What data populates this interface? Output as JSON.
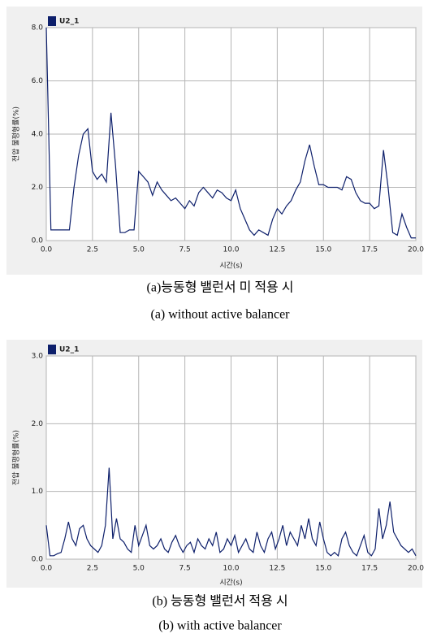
{
  "chart_data": [
    {
      "type": "line",
      "caption": "(a)능동형 밸런서 미 적용 시",
      "subcaption": "(a)  without active balancer",
      "x_label": "시간(s)",
      "y_label": "전압 불평형률(%)",
      "xlim": [
        0,
        20
      ],
      "ylim": [
        0,
        8
      ],
      "xticks": [
        {
          "value": 0,
          "label": "0.0"
        },
        2.5,
        {
          "value": 5,
          "label": "5.0"
        },
        7.5,
        {
          "value": 10,
          "label": "10.0"
        },
        12.5,
        {
          "value": 15,
          "label": "15.0"
        },
        17.5,
        {
          "value": 20,
          "label": "20.0"
        }
      ],
      "yticks": [
        {
          "value": 0,
          "label": "0.0"
        },
        {
          "value": 2,
          "label": "2.0"
        },
        {
          "value": 4,
          "label": "4.0"
        },
        {
          "value": 6,
          "label": "6.0"
        },
        {
          "value": 8,
          "label": "8.0"
        }
      ],
      "grid": true,
      "x": [
        0,
        0.25,
        0.5,
        0.75,
        1,
        1.25,
        1.5,
        1.75,
        2,
        2.25,
        2.5,
        2.75,
        3,
        3.25,
        3.5,
        3.75,
        4,
        4.25,
        4.5,
        4.75,
        5,
        5.25,
        5.5,
        5.75,
        6,
        6.25,
        6.5,
        6.75,
        7,
        7.25,
        7.5,
        7.75,
        8,
        8.25,
        8.5,
        8.75,
        9,
        9.25,
        9.5,
        9.75,
        10,
        10.25,
        10.5,
        10.75,
        11,
        11.25,
        11.5,
        11.75,
        12,
        12.25,
        12.5,
        12.75,
        13,
        13.25,
        13.5,
        13.75,
        14,
        14.25,
        14.5,
        14.75,
        15,
        15.25,
        15.5,
        15.75,
        16,
        16.25,
        16.5,
        16.75,
        17,
        17.25,
        17.5,
        17.75,
        18,
        18.25,
        18.5,
        18.75,
        19,
        19.25,
        19.5,
        19.75,
        20
      ],
      "series": [
        {
          "name": "U2_1",
          "color": "#0d1f6b",
          "values": [
            8.0,
            0.4,
            0.4,
            0.4,
            0.4,
            0.4,
            2.0,
            3.2,
            4.0,
            4.2,
            2.6,
            2.3,
            2.5,
            2.2,
            4.8,
            2.8,
            0.3,
            0.3,
            0.4,
            0.4,
            2.6,
            2.4,
            2.2,
            1.7,
            2.2,
            1.9,
            1.7,
            1.5,
            1.6,
            1.4,
            1.2,
            1.5,
            1.3,
            1.8,
            2.0,
            1.8,
            1.6,
            1.9,
            1.8,
            1.6,
            1.5,
            1.9,
            1.2,
            0.8,
            0.4,
            0.2,
            0.4,
            0.3,
            0.2,
            0.8,
            1.2,
            1.0,
            1.3,
            1.5,
            1.9,
            2.2,
            3.0,
            3.6,
            2.8,
            2.1,
            2.1,
            2.0,
            2.0,
            2.0,
            1.9,
            2.4,
            2.3,
            1.8,
            1.5,
            1.4,
            1.4,
            1.2,
            1.3,
            3.4,
            2.0,
            0.3,
            0.2,
            1.0,
            0.5,
            0.1,
            0.1
          ]
        }
      ]
    },
    {
      "type": "line",
      "caption": "(b) 능동형 밸런서 적용 시",
      "subcaption": "(b) with active balancer",
      "x_label": "시간(s)",
      "y_label": "전압 불평형률(%)",
      "xlim": [
        0,
        20
      ],
      "ylim": [
        0,
        3
      ],
      "xticks": [
        {
          "value": 0,
          "label": "0.0"
        },
        2.5,
        {
          "value": 5,
          "label": "5.0"
        },
        7.5,
        {
          "value": 10,
          "label": "10.0"
        },
        12.5,
        {
          "value": 15,
          "label": "15.0"
        },
        17.5,
        {
          "value": 20,
          "label": "20.0"
        }
      ],
      "yticks": [
        {
          "value": 0,
          "label": "0.0"
        },
        {
          "value": 1,
          "label": "1.0"
        },
        {
          "value": 2,
          "label": "2.0"
        },
        {
          "value": 3,
          "label": "3.0"
        }
      ],
      "grid": true,
      "x": [
        0,
        0.2,
        0.4,
        0.6,
        0.8,
        1,
        1.2,
        1.4,
        1.6,
        1.8,
        2,
        2.2,
        2.4,
        2.6,
        2.8,
        3,
        3.2,
        3.4,
        3.6,
        3.8,
        4,
        4.2,
        4.4,
        4.6,
        4.8,
        5,
        5.2,
        5.4,
        5.6,
        5.8,
        6,
        6.2,
        6.4,
        6.6,
        6.8,
        7,
        7.2,
        7.4,
        7.6,
        7.8,
        8,
        8.2,
        8.4,
        8.6,
        8.8,
        9,
        9.2,
        9.4,
        9.6,
        9.8,
        10,
        10.2,
        10.4,
        10.6,
        10.8,
        11,
        11.2,
        11.4,
        11.6,
        11.8,
        12,
        12.2,
        12.4,
        12.6,
        12.8,
        13,
        13.2,
        13.4,
        13.6,
        13.8,
        14,
        14.2,
        14.4,
        14.6,
        14.8,
        15,
        15.2,
        15.4,
        15.6,
        15.8,
        16,
        16.2,
        16.4,
        16.6,
        16.8,
        17,
        17.2,
        17.4,
        17.6,
        17.8,
        18,
        18.2,
        18.4,
        18.6,
        18.8,
        19,
        19.2,
        19.4,
        19.6,
        19.8,
        20
      ],
      "series": [
        {
          "name": "U2_1",
          "color": "#0d1f6b",
          "values": [
            0.5,
            0.05,
            0.05,
            0.08,
            0.1,
            0.3,
            0.55,
            0.3,
            0.2,
            0.45,
            0.5,
            0.3,
            0.2,
            0.15,
            0.1,
            0.2,
            0.5,
            1.35,
            0.3,
            0.6,
            0.3,
            0.25,
            0.15,
            0.1,
            0.5,
            0.2,
            0.35,
            0.5,
            0.2,
            0.15,
            0.2,
            0.3,
            0.15,
            0.1,
            0.25,
            0.35,
            0.2,
            0.1,
            0.2,
            0.25,
            0.1,
            0.3,
            0.2,
            0.15,
            0.3,
            0.2,
            0.4,
            0.1,
            0.15,
            0.3,
            0.2,
            0.35,
            0.1,
            0.2,
            0.3,
            0.15,
            0.1,
            0.4,
            0.2,
            0.1,
            0.3,
            0.4,
            0.15,
            0.3,
            0.5,
            0.2,
            0.4,
            0.3,
            0.2,
            0.5,
            0.3,
            0.6,
            0.3,
            0.2,
            0.55,
            0.3,
            0.1,
            0.05,
            0.1,
            0.05,
            0.3,
            0.4,
            0.2,
            0.1,
            0.05,
            0.2,
            0.35,
            0.1,
            0.05,
            0.15,
            0.75,
            0.3,
            0.5,
            0.85,
            0.4,
            0.3,
            0.2,
            0.15,
            0.1,
            0.15,
            0.05
          ]
        }
      ]
    }
  ]
}
